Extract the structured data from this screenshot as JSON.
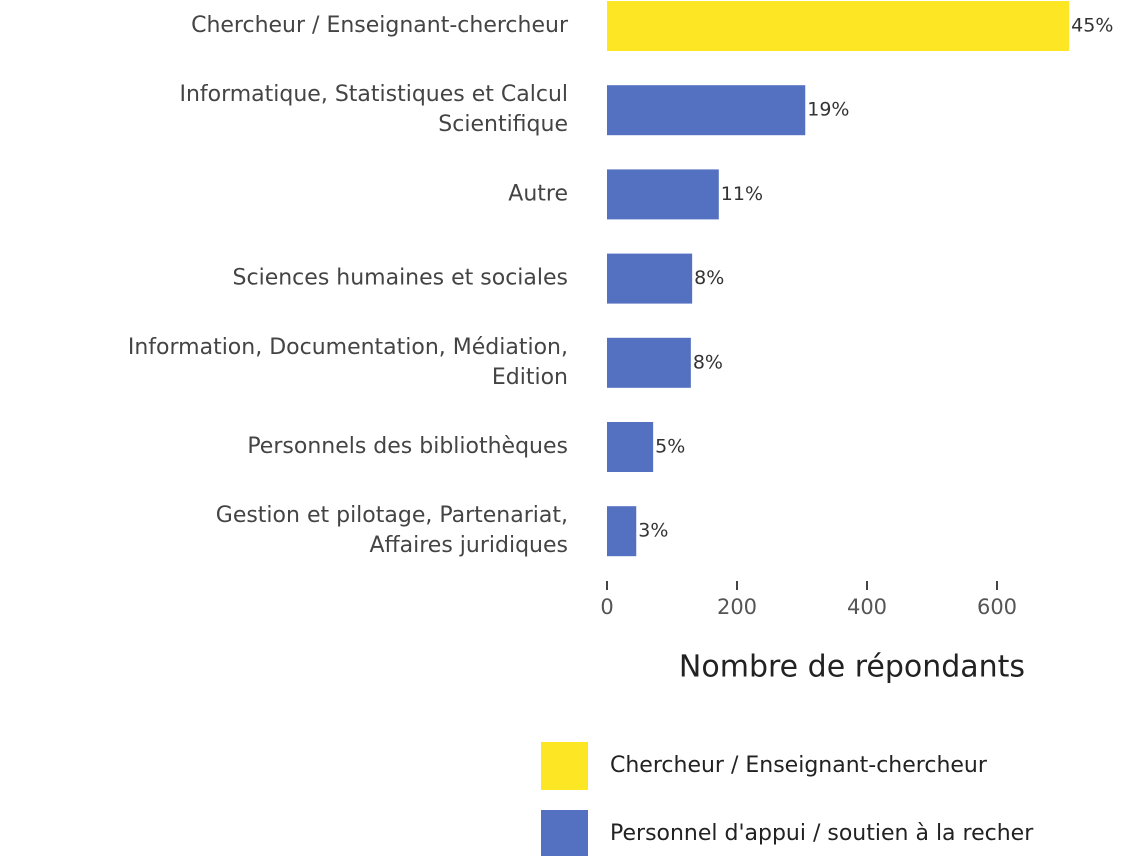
{
  "chart_data": {
    "type": "barh",
    "categories": [
      "Chercheur / Enseignant-chercheur",
      "Informatique, Statistiques et Calcul\nScientifique",
      "Autre",
      "Sciences humaines et sociales",
      "Information, Documentation, Médiation,\nEdition",
      "Personnels des bibliothèques",
      "Gestion et pilotage, Partenariat,\nAffaires juridiques"
    ],
    "series": [
      {
        "name": "Chercheur / Enseignant-chercheur",
        "color": "#fde725",
        "values": [
          711,
          null,
          null,
          null,
          null,
          null,
          null
        ],
        "value_labels": [
          "45%",
          null,
          null,
          null,
          null,
          null,
          null
        ]
      },
      {
        "name": "Personnel d'appui / soutien à la recher",
        "color": "#5470c0",
        "values": [
          null,
          305,
          172,
          131,
          129,
          71,
          45
        ],
        "value_labels": [
          null,
          "19%",
          "11%",
          "8%",
          "8%",
          "5%",
          "3%"
        ]
      }
    ],
    "xlabel": "Nombre de répondants",
    "xlim": [
      0,
      720
    ],
    "xticks": [
      0,
      200,
      400,
      600
    ]
  }
}
